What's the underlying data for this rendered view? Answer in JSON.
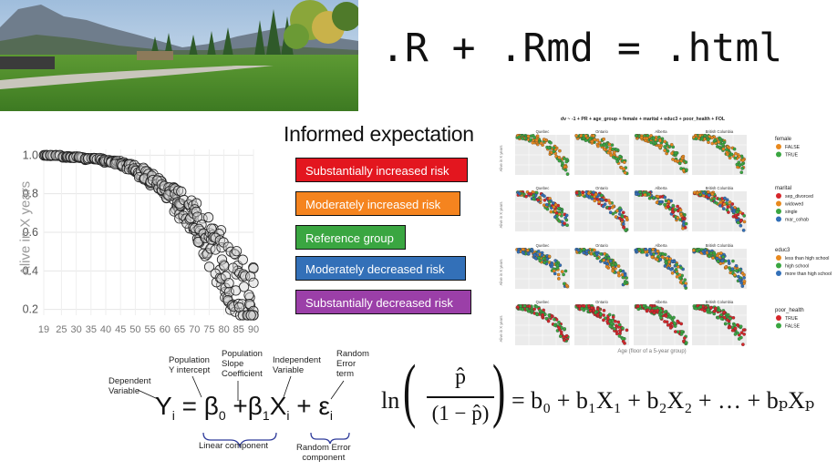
{
  "header": {
    "formula": ".R + .Rmd = .html"
  },
  "photo": {
    "description_icon": "landscape-photo-icon",
    "colors": {
      "sky": "#bcd3ea",
      "mountain": "#6f7d8c",
      "grass": "#4f8a2a",
      "trees": "#2f5a2a"
    }
  },
  "scatter": {
    "ylabel": "Alive in X years",
    "yticks": [
      "1.0",
      "0.8",
      "0.6",
      "0.4",
      "0.2"
    ],
    "xticks": [
      "19",
      "25",
      "30",
      "35",
      "40",
      "45",
      "50",
      "55",
      "60",
      "65",
      "70",
      "75",
      "80",
      "85",
      "90"
    ]
  },
  "chart_data": {
    "type": "scatter",
    "xlabel": "",
    "ylabel": "Alive in X years",
    "xlim": [
      19,
      90
    ],
    "ylim": [
      0.17,
      1.03
    ],
    "grid": true,
    "series": [
      {
        "x": [
          20,
          22,
          24,
          26,
          28,
          30,
          32,
          34,
          36,
          38,
          40,
          42,
          44,
          46,
          48,
          50,
          52,
          54,
          56,
          58,
          60,
          62,
          64,
          66,
          68,
          70,
          72,
          74,
          76,
          78,
          80,
          82,
          84,
          86,
          88,
          90
        ],
        "y": [
          1.0,
          1.0,
          1.0,
          0.99,
          0.99,
          0.99,
          0.99,
          0.98,
          0.98,
          0.98,
          0.97,
          0.97,
          0.96,
          0.95,
          0.94,
          0.93,
          0.91,
          0.89,
          0.87,
          0.85,
          0.82,
          0.8,
          0.77,
          0.74,
          0.7,
          0.66,
          0.62,
          0.57,
          0.52,
          0.47,
          0.42,
          0.37,
          0.33,
          0.29,
          0.26,
          0.23
        ]
      }
    ]
  },
  "expectation": {
    "title": "Informed expectation",
    "items": [
      {
        "label": "Substantially increased risk",
        "color": "#e3161f"
      },
      {
        "label": "Moderately increased risk",
        "color": "#f5841f"
      },
      {
        "label": "Reference group",
        "color": "#3aa641"
      },
      {
        "label": "Moderately decreased risk",
        "color": "#3370b8"
      },
      {
        "label": "Substantially decreased risk",
        "color": "#9b3fa8"
      }
    ]
  },
  "facets": {
    "title": "dv ~ -1 + PR + age_group + female + marital + educ3 + poor_health + FOL",
    "columns": [
      "Quebec",
      "Ontario",
      "Alberta",
      "British Columbia"
    ],
    "ylabel": "Alive in X years",
    "xlabel": "Age (floor of a 5-year group)",
    "legends": [
      {
        "title": "female",
        "entries": [
          {
            "label": "FALSE",
            "color": "#e8891e"
          },
          {
            "label": "TRUE",
            "color": "#3aa641"
          }
        ]
      },
      {
        "title": "marital",
        "entries": [
          {
            "label": "sep_divorced",
            "color": "#d6262a"
          },
          {
            "label": "widowed",
            "color": "#e8891e"
          },
          {
            "label": "single",
            "color": "#3aa641"
          },
          {
            "label": "mar_cohab",
            "color": "#3370b8"
          }
        ]
      },
      {
        "title": "educ3",
        "entries": [
          {
            "label": "less than high school",
            "color": "#e8891e"
          },
          {
            "label": "high school",
            "color": "#3aa641"
          },
          {
            "label": "more than high school",
            "color": "#3370b8"
          }
        ]
      },
      {
        "title": "poor_health",
        "entries": [
          {
            "label": "TRUE",
            "color": "#d6262a"
          },
          {
            "label": "FALSE",
            "color": "#3aa641"
          }
        ]
      }
    ]
  },
  "regression": {
    "labels": {
      "dependent": "Dependent\nVariable",
      "intercept": "Population\nY intercept",
      "slope": "Population\nSlope\nCoefficient",
      "independent": "Independent\nVariable",
      "error": "Random\nError\nterm",
      "linear": "Linear component",
      "error_component": "Random Error\ncomponent"
    },
    "equation": {
      "Y": "Y",
      "i1": "i",
      "eq": "=",
      "beta": "β",
      "zero": "0",
      "plus1": "+",
      "beta1": "β",
      "one": "1",
      "X": "X",
      "i2": "i",
      "plus2": "+",
      "eps": "ε",
      "i3": "i"
    }
  },
  "logit": {
    "ln": "ln",
    "phat": "p̂",
    "denominator": "(1 − p̂)",
    "rhs": "= b₀ + b₁X₁ + b₂X₂ + … + bₚXₚ"
  }
}
